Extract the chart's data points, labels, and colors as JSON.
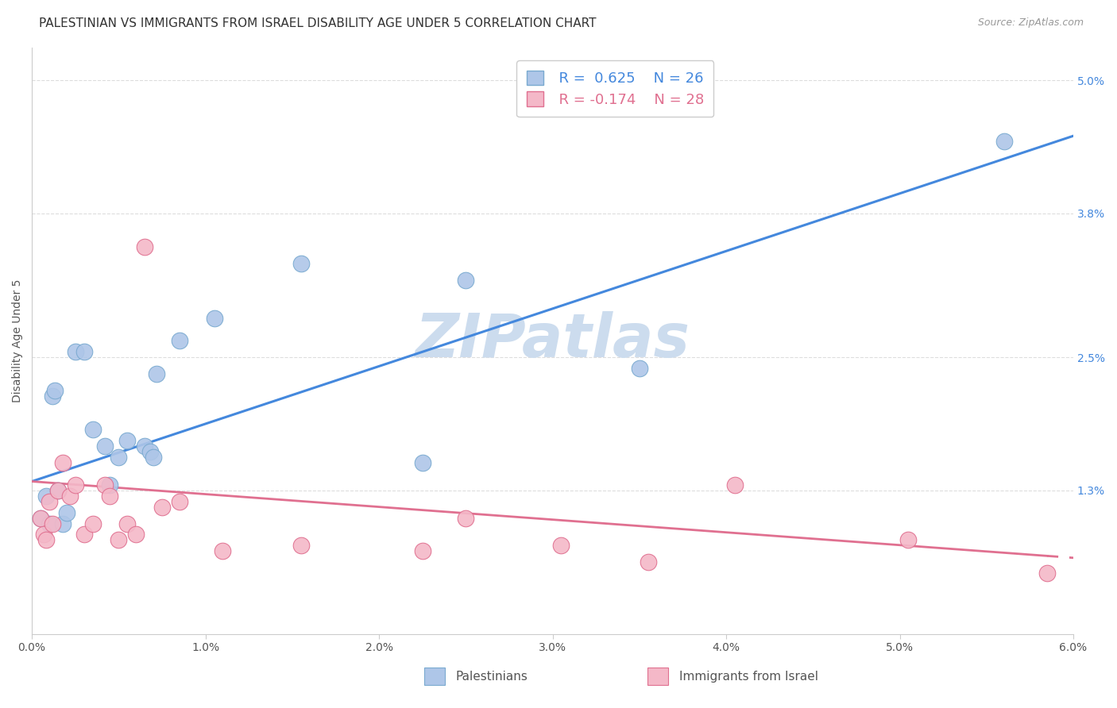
{
  "title": "PALESTINIAN VS IMMIGRANTS FROM ISRAEL DISABILITY AGE UNDER 5 CORRELATION CHART",
  "source": "Source: ZipAtlas.com",
  "ylabel": "Disability Age Under 5",
  "xlim": [
    0.0,
    6.0
  ],
  "ylim": [
    0.0,
    5.3
  ],
  "xticks": [
    0.0,
    1.0,
    2.0,
    3.0,
    4.0,
    5.0,
    6.0
  ],
  "xtick_labels": [
    "0.0%",
    "1.0%",
    "2.0%",
    "3.0%",
    "4.0%",
    "5.0%",
    "6.0%"
  ],
  "yticks": [
    1.3,
    2.5,
    3.8,
    5.0
  ],
  "ytick_labels": [
    "1.3%",
    "2.5%",
    "3.8%",
    "5.0%"
  ],
  "grid_color": "#dddddd",
  "background_color": "#ffffff",
  "palestinians": {
    "color": "#aec6e8",
    "edge_color": "#7aaad0",
    "R": 0.625,
    "N": 26,
    "line_color": "#4488dd",
    "x": [
      0.05,
      0.08,
      0.1,
      0.12,
      0.13,
      0.15,
      0.18,
      0.2,
      0.25,
      0.3,
      0.35,
      0.42,
      0.45,
      0.5,
      0.55,
      0.65,
      0.68,
      0.7,
      0.72,
      0.85,
      1.05,
      1.55,
      2.25,
      2.5,
      3.5,
      5.6
    ],
    "y": [
      1.05,
      1.25,
      1.0,
      2.15,
      2.2,
      1.3,
      1.0,
      1.1,
      2.55,
      2.55,
      1.85,
      1.7,
      1.35,
      1.6,
      1.75,
      1.7,
      1.65,
      1.6,
      2.35,
      2.65,
      2.85,
      3.35,
      1.55,
      3.2,
      2.4,
      4.45
    ]
  },
  "immigrants": {
    "color": "#f4b8c8",
    "edge_color": "#e07090",
    "R": -0.174,
    "N": 28,
    "line_color": "#e07090",
    "x": [
      0.05,
      0.07,
      0.08,
      0.1,
      0.12,
      0.15,
      0.18,
      0.22,
      0.25,
      0.3,
      0.35,
      0.42,
      0.45,
      0.5,
      0.55,
      0.6,
      0.65,
      0.75,
      0.85,
      1.1,
      1.55,
      2.25,
      2.5,
      3.05,
      3.55,
      4.05,
      5.05,
      5.85
    ],
    "y": [
      1.05,
      0.9,
      0.85,
      1.2,
      1.0,
      1.3,
      1.55,
      1.25,
      1.35,
      0.9,
      1.0,
      1.35,
      1.25,
      0.85,
      1.0,
      0.9,
      3.5,
      1.15,
      1.2,
      0.75,
      0.8,
      0.75,
      1.05,
      0.8,
      0.65,
      1.35,
      0.85,
      0.55
    ]
  },
  "watermark_color": "#ccdcee",
  "title_fontsize": 11,
  "axis_fontsize": 10,
  "tick_fontsize": 10,
  "right_ytick_color": "#4488dd",
  "legend_label_color": "#555555",
  "blue_line_intercept": 1.38,
  "blue_line_slope": 0.52,
  "pink_line_intercept": 1.38,
  "pink_line_slope": -0.115
}
